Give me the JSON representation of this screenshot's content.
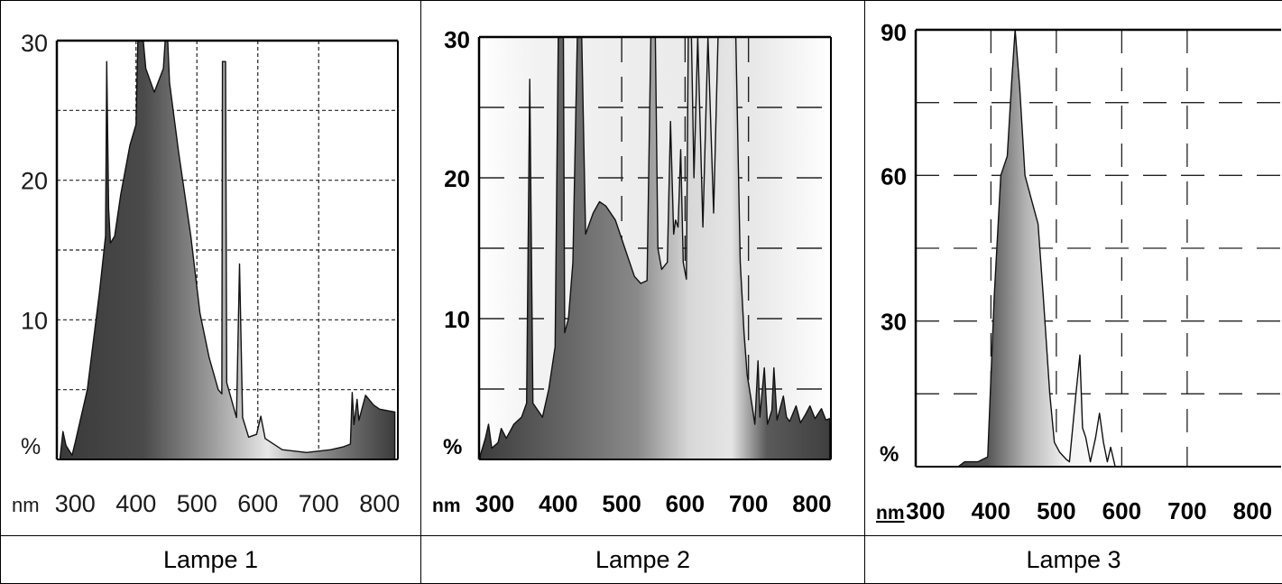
{
  "panels": [
    {
      "label": "Lampe 1"
    },
    {
      "label": "Lampe 2"
    },
    {
      "label": "Lampe 3"
    }
  ],
  "chart_data": [
    {
      "type": "area",
      "title": "Lampe 1",
      "xlabel": "nm",
      "ylabel": "%",
      "xlim": [
        270,
        830
      ],
      "ylim": [
        0,
        30
      ],
      "x_ticks": [
        300,
        400,
        500,
        600,
        700,
        800
      ],
      "y_ticks": [
        30,
        20,
        10
      ],
      "grid": true,
      "gradient_fill": true,
      "points": [
        [
          275,
          0
        ],
        [
          280,
          2
        ],
        [
          285,
          1
        ],
        [
          295,
          0.3
        ],
        [
          300,
          1.2
        ],
        [
          320,
          5
        ],
        [
          340,
          12
        ],
        [
          350,
          16
        ],
        [
          352,
          28.5
        ],
        [
          355,
          18
        ],
        [
          358,
          15.5
        ],
        [
          365,
          16
        ],
        [
          375,
          19
        ],
        [
          390,
          22.5
        ],
        [
          400,
          24
        ],
        [
          403,
          30
        ],
        [
          412,
          30
        ],
        [
          416,
          28
        ],
        [
          430,
          26.3
        ],
        [
          445,
          28
        ],
        [
          448,
          30
        ],
        [
          452,
          30
        ],
        [
          455,
          27
        ],
        [
          470,
          22
        ],
        [
          490,
          16
        ],
        [
          505,
          10.5
        ],
        [
          520,
          7.3
        ],
        [
          535,
          5
        ],
        [
          541,
          4.7
        ],
        [
          542,
          28.5
        ],
        [
          547,
          28.5
        ],
        [
          549,
          5.5
        ],
        [
          565,
          3
        ],
        [
          570,
          14
        ],
        [
          575,
          3
        ],
        [
          585,
          1.6
        ],
        [
          598,
          1.8
        ],
        [
          605,
          3.1
        ],
        [
          612,
          1.5
        ],
        [
          640,
          0.7
        ],
        [
          680,
          0.5
        ],
        [
          720,
          0.7
        ],
        [
          740,
          0.9
        ],
        [
          752,
          1.1
        ],
        [
          755,
          4.8
        ],
        [
          758,
          2.5
        ],
        [
          763,
          4.3
        ],
        [
          766,
          2.8
        ],
        [
          777,
          4.6
        ],
        [
          790,
          3.9
        ],
        [
          800,
          3.6
        ],
        [
          825,
          3.4
        ]
      ]
    },
    {
      "type": "area",
      "title": "Lampe 2",
      "xlabel": "nm",
      "ylabel": "%",
      "xlim": [
        275,
        830
      ],
      "ylim": [
        0,
        30
      ],
      "x_ticks": [
        300,
        400,
        500,
        600,
        700,
        800
      ],
      "y_ticks": [
        30,
        20,
        10
      ],
      "grid": true,
      "gradient_fill": true,
      "points": [
        [
          277,
          0.3
        ],
        [
          285,
          1.5
        ],
        [
          290,
          2.5
        ],
        [
          295,
          0.8
        ],
        [
          305,
          1.2
        ],
        [
          310,
          2.2
        ],
        [
          318,
          1.5
        ],
        [
          330,
          2.5
        ],
        [
          342,
          3
        ],
        [
          350,
          4
        ],
        [
          355,
          27
        ],
        [
          360,
          4
        ],
        [
          375,
          3
        ],
        [
          385,
          5
        ],
        [
          395,
          8
        ],
        [
          400,
          30
        ],
        [
          408,
          30
        ],
        [
          410,
          9
        ],
        [
          416,
          10
        ],
        [
          423,
          14
        ],
        [
          430,
          30
        ],
        [
          437,
          30
        ],
        [
          443,
          16
        ],
        [
          455,
          17.5
        ],
        [
          465,
          18.3
        ],
        [
          475,
          18
        ],
        [
          490,
          17
        ],
        [
          505,
          15
        ],
        [
          520,
          13
        ],
        [
          530,
          12.5
        ],
        [
          540,
          12.7
        ],
        [
          546,
          30
        ],
        [
          553,
          30
        ],
        [
          557,
          15
        ],
        [
          563,
          13.5
        ],
        [
          572,
          14
        ],
        [
          577,
          24
        ],
        [
          582,
          16
        ],
        [
          585,
          17
        ],
        [
          589,
          16.5
        ],
        [
          593,
          22
        ],
        [
          597,
          14
        ],
        [
          602,
          12.8
        ],
        [
          605,
          30
        ],
        [
          610,
          30
        ],
        [
          614,
          20
        ],
        [
          620,
          30
        ],
        [
          628,
          16.5
        ],
        [
          636,
          30
        ],
        [
          645,
          17.5
        ],
        [
          652,
          30
        ],
        [
          680,
          30
        ],
        [
          687,
          14
        ],
        [
          693,
          9
        ],
        [
          698,
          6
        ],
        [
          705,
          4
        ],
        [
          710,
          2.5
        ],
        [
          715,
          7
        ],
        [
          718,
          3
        ],
        [
          725,
          6.5
        ],
        [
          730,
          2.5
        ],
        [
          737,
          3.5
        ],
        [
          740,
          6.5
        ],
        [
          745,
          2.8
        ],
        [
          755,
          4.5
        ],
        [
          760,
          3
        ],
        [
          765,
          2.7
        ],
        [
          775,
          3.8
        ],
        [
          782,
          2.6
        ],
        [
          790,
          3.2
        ],
        [
          797,
          3.8
        ],
        [
          805,
          2.9
        ],
        [
          815,
          3.6
        ],
        [
          822,
          2.8
        ],
        [
          828,
          2.9
        ]
      ]
    },
    {
      "type": "area",
      "title": "Lampe 3",
      "xlabel": "nm",
      "ylabel": "%",
      "xlim": [
        285,
        845
      ],
      "ylim": [
        0,
        90
      ],
      "x_ticks": [
        300,
        400,
        500,
        600,
        700,
        800
      ],
      "y_ticks": [
        90,
        60,
        30
      ],
      "grid": true,
      "gradient_fill": true,
      "points": [
        [
          290,
          0
        ],
        [
          350,
          0
        ],
        [
          360,
          1
        ],
        [
          380,
          1
        ],
        [
          395,
          2
        ],
        [
          405,
          35
        ],
        [
          415,
          60
        ],
        [
          425,
          64
        ],
        [
          432,
          80
        ],
        [
          437,
          90
        ],
        [
          444,
          78
        ],
        [
          452,
          60
        ],
        [
          462,
          55
        ],
        [
          472,
          50
        ],
        [
          480,
          35
        ],
        [
          490,
          15
        ],
        [
          497,
          5
        ],
        [
          505,
          3
        ],
        [
          515,
          1.5
        ],
        [
          520,
          1
        ],
        [
          530,
          15
        ],
        [
          536,
          23
        ],
        [
          540,
          8
        ],
        [
          545,
          6
        ],
        [
          552,
          1
        ],
        [
          560,
          6
        ],
        [
          566,
          11
        ],
        [
          572,
          5
        ],
        [
          578,
          1
        ],
        [
          583,
          4
        ],
        [
          590,
          0
        ]
      ]
    }
  ]
}
